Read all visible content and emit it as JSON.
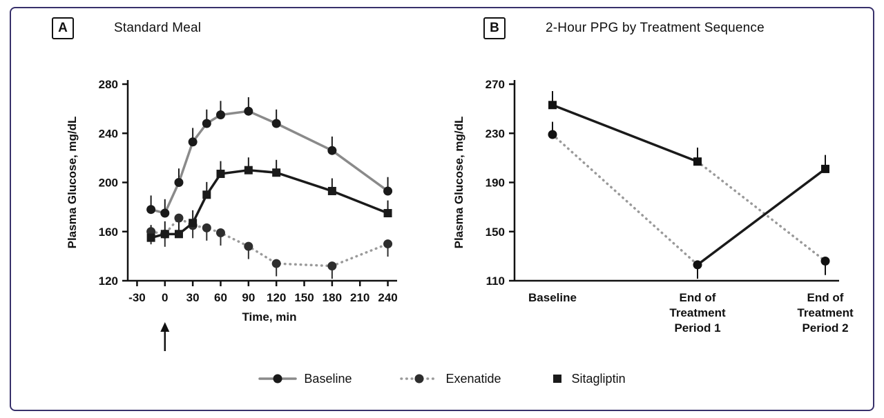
{
  "frame": {
    "border_color": "#37306a",
    "background": "#ffffff"
  },
  "legend": {
    "items": [
      {
        "label": "Baseline",
        "marker": "circle",
        "line": "solid",
        "line_color": "#8a8a8a",
        "marker_color": "#1a1a1a"
      },
      {
        "label": "Exenatide",
        "marker": "circle",
        "line": "dotted",
        "line_color": "#9a9a9a",
        "marker_color": "#2e2e2e"
      },
      {
        "label": "Sitagliptin",
        "marker": "square",
        "line": "none",
        "line_color": "#1a1a1a",
        "marker_color": "#1a1a1a"
      }
    ]
  },
  "chart_data": [
    {
      "type": "line",
      "panel_label": "A",
      "title": "Standard Meal",
      "xlabel": "Time, min",
      "ylabel": "Plasma Glucose, mg/dL",
      "xlim": [
        -40,
        250
      ],
      "ylim": [
        120,
        280
      ],
      "xticks": [
        -30,
        0,
        30,
        60,
        90,
        120,
        150,
        180,
        210,
        240
      ],
      "yticks": [
        120,
        160,
        200,
        240,
        280
      ],
      "meal_arrow_x": 0,
      "x": [
        -15,
        0,
        15,
        30,
        45,
        60,
        90,
        120,
        180,
        240
      ],
      "series": [
        {
          "name": "Baseline",
          "marker": "circle",
          "line": "solid",
          "color": "#8a8a8a",
          "marker_color": "#1a1a1a",
          "err": 8,
          "err_dir": "up",
          "values": [
            178,
            175,
            200,
            233,
            248,
            255,
            258,
            248,
            226,
            193
          ]
        },
        {
          "name": "Exenatide",
          "marker": "circle",
          "line": "dotted",
          "color": "#9a9a9a",
          "marker_color": "#2e2e2e",
          "err": 7,
          "err_dir": "down",
          "values": [
            160,
            158,
            171,
            165,
            163,
            159,
            148,
            134,
            132,
            150
          ]
        },
        {
          "name": "Sitagliptin",
          "marker": "square",
          "line": "solid",
          "color": "#1a1a1a",
          "marker_color": "#1a1a1a",
          "err": 7,
          "err_dir": "up",
          "values": [
            155,
            158,
            158,
            167,
            190,
            207,
            210,
            208,
            193,
            175
          ]
        }
      ]
    },
    {
      "type": "line",
      "panel_label": "B",
      "title": "2-Hour PPG by Treatment Sequence",
      "ylabel": "Plasma Glucose, mg/dL",
      "categories": [
        "Baseline",
        "End of\nTreatment\nPeriod 1",
        "End of\nTreatment\nPeriod 2"
      ],
      "ylim": [
        110,
        270
      ],
      "yticks": [
        110,
        150,
        190,
        230,
        270
      ],
      "points": [
        {
          "x": 0,
          "y": 253,
          "marker": "square",
          "err": 8,
          "err_dir": "up"
        },
        {
          "x": 0,
          "y": 229,
          "marker": "circle",
          "err": 7,
          "err_dir": "up"
        },
        {
          "x": 1,
          "y": 207,
          "marker": "square",
          "err": 8,
          "err_dir": "up"
        },
        {
          "x": 1,
          "y": 123,
          "marker": "circle",
          "err": 8,
          "err_dir": "down"
        },
        {
          "x": 2,
          "y": 201,
          "marker": "square",
          "err": 8,
          "err_dir": "up"
        },
        {
          "x": 2,
          "y": 126,
          "marker": "circle",
          "err": 8,
          "err_dir": "down"
        }
      ],
      "segments": [
        {
          "x1": 0,
          "y1": 253,
          "x2": 1,
          "y2": 207,
          "line": "solid",
          "color": "#1a1a1a"
        },
        {
          "x1": 0,
          "y1": 229,
          "x2": 1,
          "y2": 123,
          "line": "dotted",
          "color": "#9a9a9a"
        },
        {
          "x1": 1,
          "y1": 207,
          "x2": 2,
          "y2": 126,
          "line": "dotted",
          "color": "#9a9a9a"
        },
        {
          "x1": 1,
          "y1": 123,
          "x2": 2,
          "y2": 201,
          "line": "solid",
          "color": "#1a1a1a"
        }
      ]
    }
  ]
}
